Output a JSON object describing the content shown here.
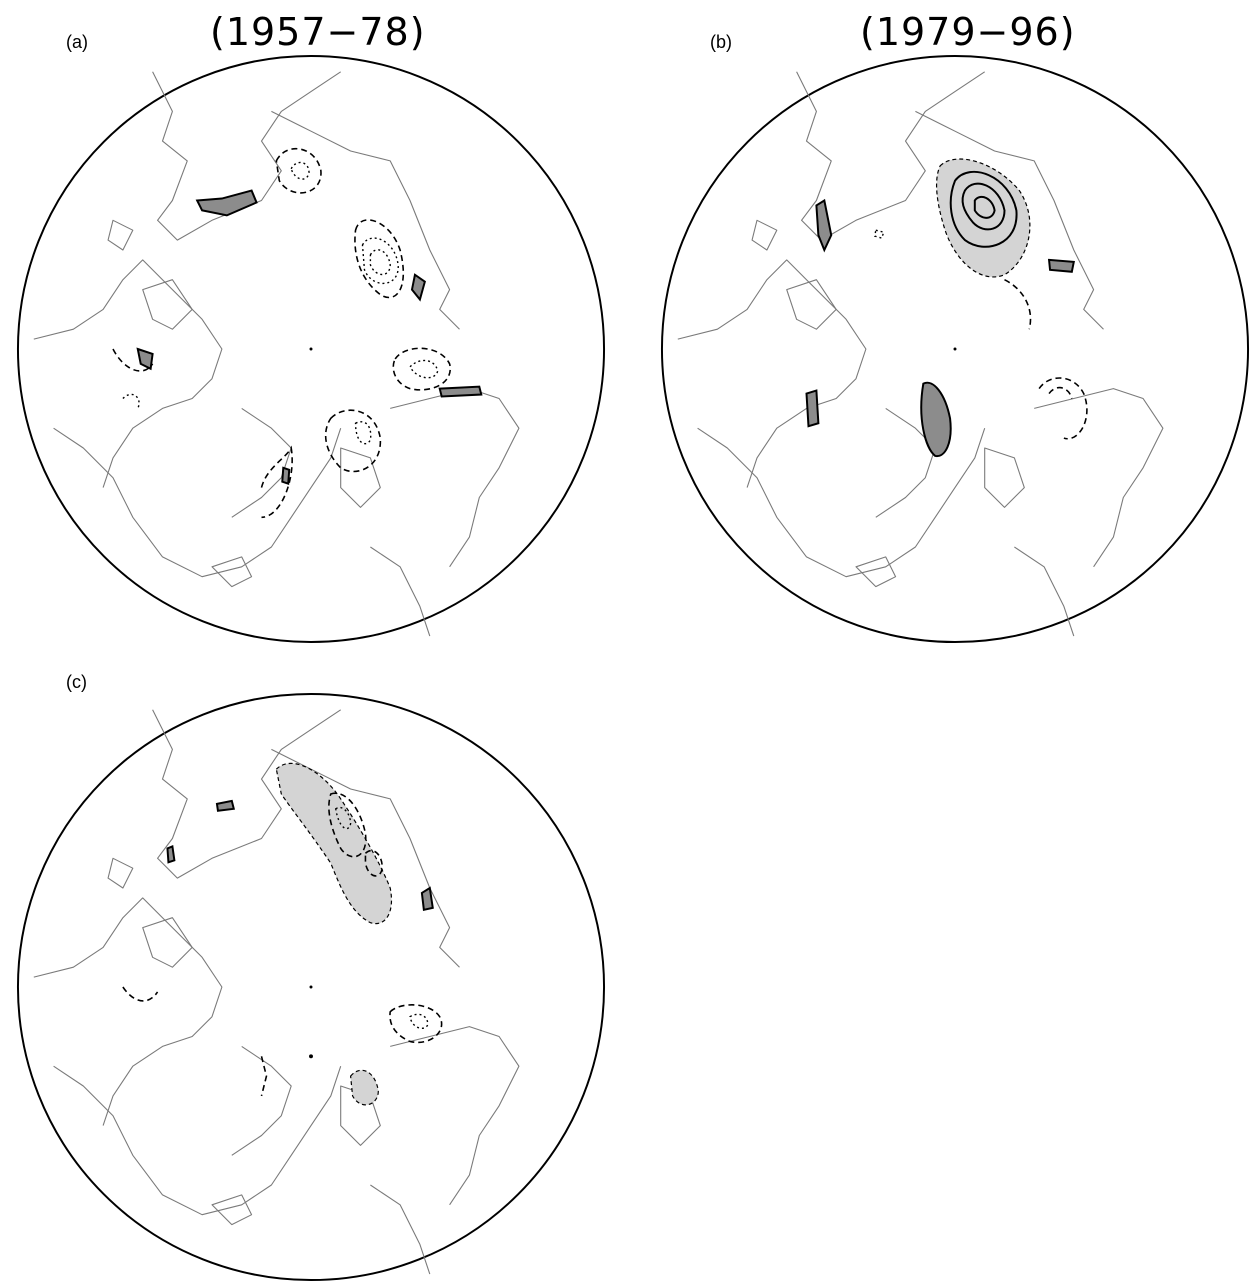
{
  "panels": [
    {
      "id": "a",
      "label": "(a)",
      "title": "(1957−78)"
    },
    {
      "id": "b",
      "label": "(b)",
      "title": "(1979−96)"
    },
    {
      "id": "c",
      "label": "(c)",
      "title": ""
    }
  ],
  "colors": {
    "coastline": "#7a7a7a",
    "contour": "#000000",
    "shading_light": "#d4d4d4",
    "shading_dark": "#8c8c8c"
  }
}
